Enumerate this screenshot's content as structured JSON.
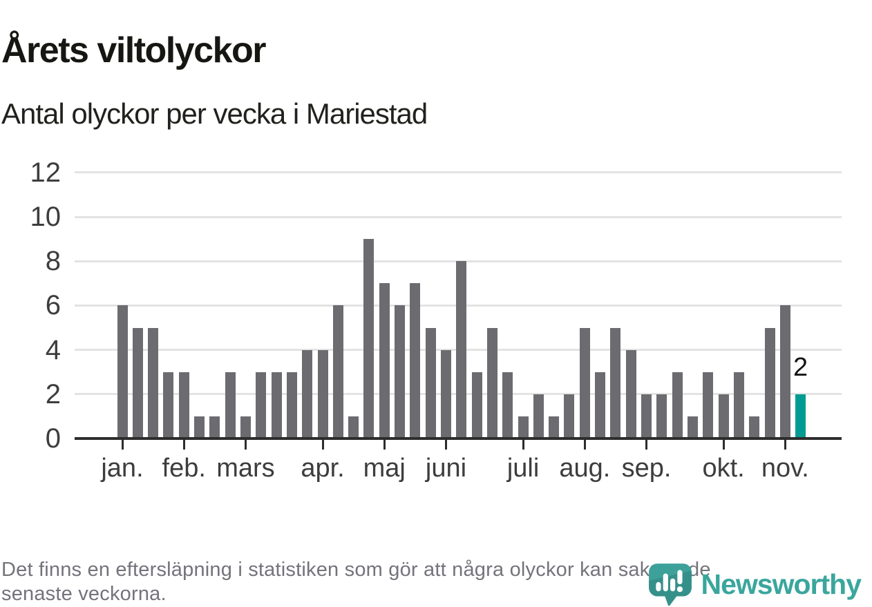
{
  "header": {
    "title": "Årets viltolyckor",
    "subtitle": "Antal olyckor per vecka i Mariestad"
  },
  "footer": {
    "line1": "Det finns en eftersläpning i statistiken som gör att några olyckor kan saknas de",
    "line2": "senaste veckorna."
  },
  "logo": {
    "wordmark": "Newsworthy"
  },
  "colors": {
    "bar": "#6b6b70",
    "highlight": "#009c93",
    "grid": "#e3e3e3",
    "axis": "#2d2d2d",
    "axis_text": "#3d3d3d",
    "value_label": "#141414",
    "logo_teal": "#3aa69d"
  },
  "chart_data": {
    "type": "bar",
    "title": "Årets viltolyckor",
    "subtitle": "Antal olyckor per vecka i Mariestad",
    "unit": "olyckor per vecka",
    "weeks": [
      1,
      2,
      3,
      4,
      5,
      6,
      7,
      8,
      9,
      10,
      11,
      12,
      13,
      14,
      15,
      16,
      17,
      18,
      19,
      20,
      21,
      22,
      23,
      24,
      25,
      26,
      27,
      28,
      29,
      30,
      31,
      32,
      33,
      34,
      35,
      36,
      37,
      38,
      39,
      40,
      41,
      42,
      43,
      44,
      45
    ],
    "values": [
      6,
      5,
      5,
      3,
      3,
      1,
      1,
      3,
      1,
      3,
      3,
      3,
      4,
      4,
      6,
      1,
      9,
      7,
      6,
      7,
      5,
      4,
      8,
      3,
      5,
      3,
      1,
      2,
      1,
      2,
      5,
      3,
      5,
      4,
      2,
      2,
      3,
      1,
      3,
      2,
      3,
      1,
      5,
      6,
      2
    ],
    "highlight_last": true,
    "last_value_label": "2",
    "yticks": [
      0,
      2,
      4,
      6,
      8,
      10,
      12
    ],
    "ylim": [
      0,
      12
    ],
    "grid": true,
    "legend": "none",
    "month_ticks": [
      {
        "label": "jan.",
        "week": 1
      },
      {
        "label": "feb.",
        "week": 5
      },
      {
        "label": "mars",
        "week": 9
      },
      {
        "label": "apr.",
        "week": 14
      },
      {
        "label": "maj",
        "week": 18
      },
      {
        "label": "juni",
        "week": 22
      },
      {
        "label": "juli",
        "week": 27
      },
      {
        "label": "aug.",
        "week": 31
      },
      {
        "label": "sep.",
        "week": 35
      },
      {
        "label": "okt.",
        "week": 40
      },
      {
        "label": "nov.",
        "week": 44
      }
    ]
  }
}
